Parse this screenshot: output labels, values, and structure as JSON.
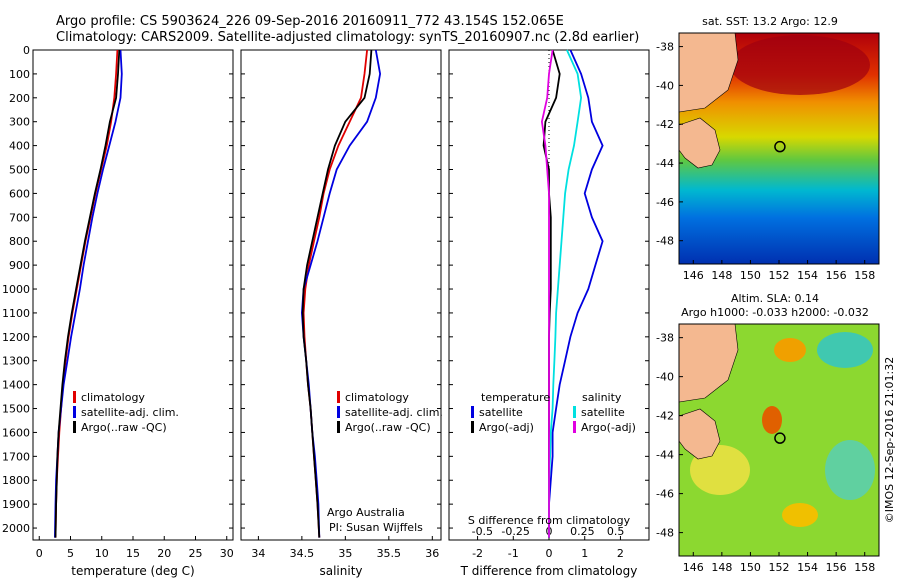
{
  "header": {
    "line1": "Argo profile: CS 5903624_226 09-Sep-2016 20160911_772 43.154S 152.065E",
    "line2": "Climatology: CARS2009. Satellite-adjusted climatology: synTS_20160907.nc (2.8d earlier)"
  },
  "colors": {
    "climatology": "#e00000",
    "satellite": "#0000e0",
    "argo": "#000000",
    "sal_sat": "#00e0e0",
    "sal_argo": "#e000e0"
  },
  "depth_ticks": [
    0,
    100,
    200,
    300,
    400,
    500,
    600,
    700,
    800,
    900,
    1000,
    1100,
    1200,
    1300,
    1400,
    1500,
    1600,
    1700,
    1800,
    1900,
    2000
  ],
  "chart_data": [
    {
      "type": "line",
      "xlabel": "temperature (deg C)",
      "xlim": [
        -1,
        31
      ],
      "ylim": [
        2050,
        0
      ],
      "xticks": [
        0,
        5,
        10,
        15,
        20,
        25,
        30
      ],
      "xtick_labels": [
        "0",
        "5",
        "10",
        "15",
        "20",
        "25",
        "30"
      ],
      "legend": [
        "climatology",
        "satellite-adj. clim.",
        "Argo(..raw -QC)"
      ],
      "series": [
        {
          "name": "climatology",
          "x": [
            12.5,
            12.3,
            12.0,
            11.5,
            10.8,
            9.9,
            9.0,
            8.2,
            7.4,
            6.7,
            6.0,
            5.3,
            4.7,
            4.2,
            3.8,
            3.5,
            3.2,
            3.0,
            2.8,
            2.7,
            2.6
          ],
          "y": [
            0,
            100,
            200,
            300,
            400,
            500,
            600,
            700,
            800,
            900,
            1000,
            1100,
            1200,
            1300,
            1400,
            1500,
            1600,
            1700,
            1800,
            1900,
            2040
          ]
        },
        {
          "name": "satellite-adj. clim.",
          "x": [
            13.0,
            13.2,
            13.0,
            12.2,
            11.2,
            10.2,
            9.3,
            8.5,
            7.8,
            7.1,
            6.5,
            5.8,
            5.1,
            4.5,
            3.9,
            3.5,
            3.1,
            2.9,
            2.7,
            2.6,
            2.5
          ],
          "y": [
            0,
            100,
            200,
            300,
            400,
            500,
            600,
            700,
            800,
            900,
            1000,
            1100,
            1200,
            1300,
            1400,
            1500,
            1600,
            1700,
            1800,
            1900,
            2040
          ]
        },
        {
          "name": "Argo(..raw -QC)",
          "x": [
            12.8,
            12.6,
            12.3,
            11.3,
            10.6,
            9.8,
            8.9,
            8.1,
            7.3,
            6.6,
            5.9,
            5.2,
            4.6,
            4.1,
            3.7,
            3.4,
            3.1,
            2.9,
            2.8,
            2.7,
            2.6
          ],
          "y": [
            0,
            100,
            200,
            300,
            400,
            500,
            600,
            700,
            800,
            900,
            1000,
            1100,
            1200,
            1300,
            1400,
            1500,
            1600,
            1700,
            1800,
            1900,
            2040
          ]
        }
      ]
    },
    {
      "type": "line",
      "xlabel": "salinity",
      "xlim": [
        33.8,
        36.1
      ],
      "ylim": [
        2050,
        0
      ],
      "xticks": [
        34,
        34.5,
        35,
        35.5,
        36
      ],
      "xtick_labels": [
        "34",
        "34.5",
        "35",
        "35.5",
        "36"
      ],
      "legend": [
        "climatology",
        "satellite-adj. clim.",
        "Argo(..raw -QC)"
      ],
      "annotation": [
        "Argo Australia",
        "PI: Susan Wijffels"
      ],
      "series": [
        {
          "name": "climatology",
          "x": [
            35.25,
            35.22,
            35.18,
            35.05,
            34.92,
            34.82,
            34.75,
            34.7,
            34.64,
            34.58,
            34.54,
            34.52,
            34.53,
            34.55,
            34.57,
            34.6,
            34.62,
            34.64,
            34.66,
            34.68,
            34.7
          ],
          "y": [
            0,
            100,
            200,
            300,
            400,
            500,
            600,
            700,
            800,
            900,
            1000,
            1100,
            1200,
            1300,
            1400,
            1500,
            1600,
            1700,
            1800,
            1900,
            2040
          ]
        },
        {
          "name": "satellite-adj. clim.",
          "x": [
            35.35,
            35.4,
            35.35,
            35.25,
            35.05,
            34.9,
            34.82,
            34.75,
            34.68,
            34.6,
            34.52,
            34.5,
            34.52,
            34.55,
            34.58,
            34.6,
            34.62,
            34.65,
            34.67,
            34.69,
            34.7
          ],
          "y": [
            0,
            100,
            200,
            300,
            400,
            500,
            600,
            700,
            800,
            900,
            1000,
            1100,
            1200,
            1300,
            1400,
            1500,
            1600,
            1700,
            1800,
            1900,
            2040
          ]
        },
        {
          "name": "Argo(..raw -QC)",
          "x": [
            35.3,
            35.28,
            35.22,
            35.0,
            34.88,
            34.8,
            34.74,
            34.68,
            34.62,
            34.56,
            34.52,
            34.51,
            34.52,
            34.55,
            34.57,
            34.6,
            34.62,
            34.64,
            34.66,
            34.68,
            34.7
          ],
          "y": [
            0,
            100,
            200,
            300,
            400,
            500,
            600,
            700,
            800,
            900,
            1000,
            1100,
            1200,
            1300,
            1400,
            1500,
            1600,
            1700,
            1800,
            1900,
            2040
          ]
        }
      ]
    },
    {
      "type": "line",
      "xlabel": "T difference from climatology",
      "xlabel_top": "S difference from climatology",
      "xlim": [
        -2.8,
        2.8
      ],
      "ylim": [
        2050,
        0
      ],
      "xticks": [
        -2,
        -1,
        0,
        1,
        2
      ],
      "xtick_labels": [
        "-2",
        "-1",
        "0",
        "1",
        "2"
      ],
      "top_ticks": [
        -0.5,
        -0.25,
        0,
        0.25,
        0.5
      ],
      "top_tick_labels": [
        "-0.5",
        "-0.25",
        "0",
        "0.25",
        "0.5"
      ],
      "legend_left": {
        "title": "temperature",
        "items": [
          "satellite",
          "Argo(-adj)"
        ]
      },
      "legend_right": {
        "title": "salinity",
        "items": [
          "satellite",
          "Argo(-adj)"
        ]
      },
      "series": [
        {
          "name": "temperature satellite",
          "x": [
            0.6,
            0.9,
            1.1,
            1.2,
            1.5,
            1.2,
            1.0,
            1.2,
            1.5,
            1.3,
            1.1,
            0.8,
            0.6,
            0.45,
            0.3,
            0.2,
            0.1,
            0.1,
            0.05,
            0.0,
            0.0
          ],
          "y": [
            0,
            100,
            200,
            300,
            400,
            500,
            600,
            700,
            800,
            900,
            1000,
            1100,
            1200,
            1300,
            1400,
            1500,
            1600,
            1700,
            1800,
            1900,
            2040
          ]
        },
        {
          "name": "temperature Argo(-adj)",
          "x": [
            0.1,
            0.3,
            0.2,
            -0.1,
            -0.15,
            0.0,
            0.0,
            0.05,
            0.05,
            0.05,
            0.05,
            0.02,
            0.0,
            0.0,
            0.0,
            0.0,
            0.0,
            0.0,
            0.0,
            0.0,
            0.0
          ],
          "y": [
            0,
            100,
            200,
            300,
            400,
            500,
            600,
            700,
            800,
            900,
            1000,
            1100,
            1200,
            1300,
            1400,
            1500,
            1600,
            1700,
            1800,
            1900,
            2040
          ]
        },
        {
          "name": "salinity satellite",
          "x": [
            0.5,
            0.8,
            0.9,
            0.8,
            0.7,
            0.55,
            0.45,
            0.4,
            0.35,
            0.3,
            0.25,
            0.2,
            0.18,
            0.15,
            0.12,
            0.1,
            0.05,
            0.03,
            0.0,
            0.0,
            0.0
          ],
          "y": [
            0,
            100,
            200,
            300,
            400,
            500,
            600,
            700,
            800,
            900,
            1000,
            1100,
            1200,
            1300,
            1400,
            1500,
            1600,
            1700,
            1800,
            1900,
            2040
          ]
        },
        {
          "name": "salinity Argo(-adj)",
          "x": [
            0.1,
            0.0,
            -0.05,
            -0.2,
            -0.1,
            -0.05,
            0.0,
            0.0,
            0.0,
            0.0,
            0.0,
            0.0,
            0.0,
            0.0,
            0.0,
            0.0,
            0.0,
            0.0,
            0.0,
            0.0,
            0.0
          ],
          "y": [
            0,
            100,
            200,
            300,
            400,
            500,
            600,
            700,
            800,
            900,
            1000,
            1100,
            1200,
            1300,
            1400,
            1500,
            1600,
            1700,
            1800,
            1900,
            2040
          ]
        }
      ]
    }
  ],
  "map_sst": {
    "title": "sat. SST: 13.2  Argo: 12.9",
    "lat_ticks": [
      "-38",
      "-40",
      "-42",
      "-44",
      "-46",
      "-48"
    ],
    "lon_ticks": [
      "146",
      "148",
      "150",
      "152",
      "154",
      "156",
      "158"
    ],
    "float_lon": 152.065,
    "float_lat": -43.154
  },
  "map_sla": {
    "title1": "Altim. SLA: 0.14",
    "title2": "Argo h1000: -0.033 h2000: -0.032",
    "lat_ticks": [
      "-38",
      "-40",
      "-42",
      "-44",
      "-46",
      "-48"
    ],
    "lon_ticks": [
      "146",
      "148",
      "150",
      "152",
      "154",
      "156",
      "158"
    ],
    "float_lon": 152.065,
    "float_lat": -43.154
  },
  "credit": "©IMOS 12-Sep-2016 21:01:32"
}
